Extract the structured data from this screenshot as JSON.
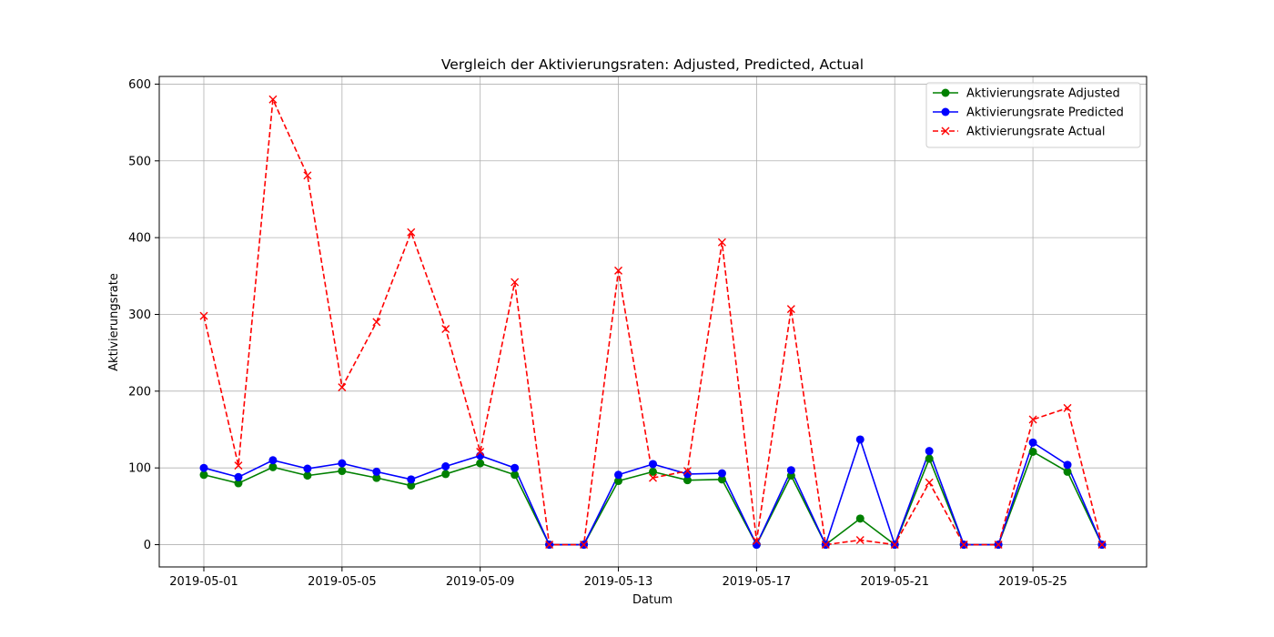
{
  "chart_data": {
    "type": "line",
    "title": "Vergleich der Aktivierungsraten: Adjusted, Predicted, Actual",
    "xlabel": "Datum",
    "ylabel": "Aktivierungsrate",
    "x": [
      "2019-05-01",
      "2019-05-02",
      "2019-05-03",
      "2019-05-04",
      "2019-05-05",
      "2019-05-06",
      "2019-05-07",
      "2019-05-08",
      "2019-05-09",
      "2019-05-10",
      "2019-05-11",
      "2019-05-12",
      "2019-05-13",
      "2019-05-14",
      "2019-05-15",
      "2019-05-16",
      "2019-05-17",
      "2019-05-18",
      "2019-05-19",
      "2019-05-20",
      "2019-05-21",
      "2019-05-22",
      "2019-05-23",
      "2019-05-24",
      "2019-05-25",
      "2019-05-26",
      "2019-05-27"
    ],
    "xticks": [
      "2019-05-01",
      "2019-05-05",
      "2019-05-09",
      "2019-05-13",
      "2019-05-17",
      "2019-05-21",
      "2019-05-25"
    ],
    "yticks": [
      0,
      100,
      200,
      300,
      400,
      500,
      600
    ],
    "ylim": [
      -29,
      610
    ],
    "grid": true,
    "legend_position": "top-right",
    "series": [
      {
        "name": "Aktivierungsrate Adjusted",
        "color": "#008000",
        "marker": "circle",
        "linestyle": "solid",
        "values": [
          91,
          80,
          101,
          90,
          96,
          87,
          77,
          92,
          106,
          91,
          0,
          0,
          83,
          95,
          84,
          85,
          0,
          90,
          0,
          34,
          0,
          112,
          0,
          0,
          121,
          95,
          0
        ]
      },
      {
        "name": "Aktivierungsrate Predicted",
        "color": "#0000ff",
        "marker": "circle",
        "linestyle": "solid",
        "values": [
          100,
          88,
          110,
          99,
          106,
          95,
          85,
          102,
          116,
          100,
          0,
          0,
          91,
          105,
          92,
          93,
          0,
          97,
          0,
          137,
          0,
          122,
          0,
          0,
          133,
          104,
          0
        ]
      },
      {
        "name": "Aktivierungsrate Actual",
        "color": "#ff0000",
        "marker": "x",
        "linestyle": "dashed",
        "values": [
          298,
          103,
          580,
          481,
          205,
          290,
          407,
          281,
          121,
          342,
          0,
          0,
          357,
          87,
          96,
          394,
          5,
          307,
          0,
          6,
          0,
          81,
          0,
          0,
          163,
          178,
          0
        ]
      }
    ]
  }
}
